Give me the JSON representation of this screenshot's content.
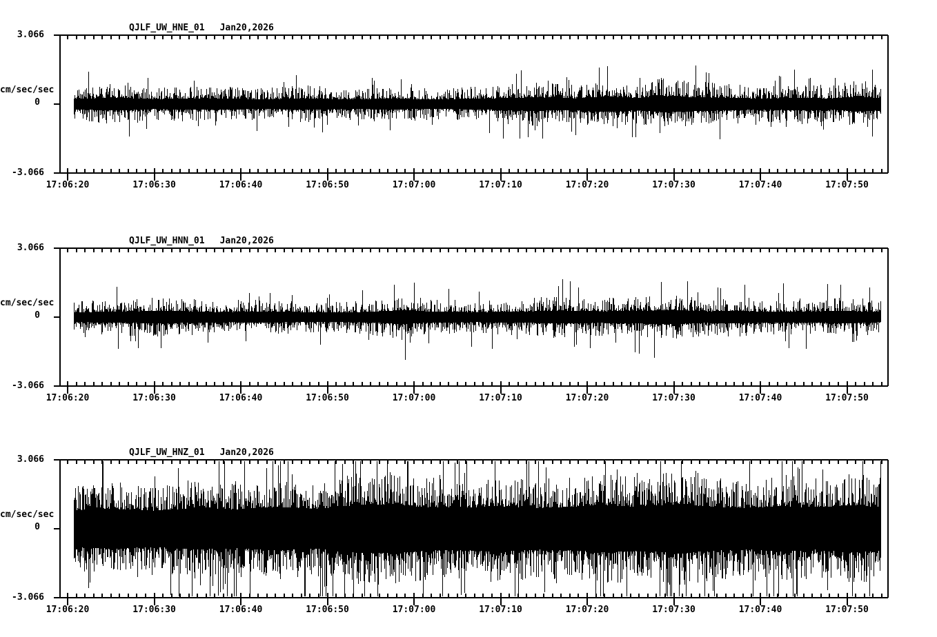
{
  "page": {
    "background": "#ffffff",
    "ink": "#000000"
  },
  "chart_data": [
    {
      "type": "line",
      "panel": "top",
      "title": "QJLF_UW_HNE_01",
      "date": "Jan20,2026",
      "ylabel": "cm/sec/sec",
      "ylim": [
        -3.066,
        3.066
      ],
      "y_tick_labels": [
        "3.066",
        "0",
        "-3.066"
      ],
      "x_tick_labels": [
        "17:06:20",
        "17:06:30",
        "17:06:40",
        "17:06:50",
        "17:07:00",
        "17:07:10",
        "17:07:20",
        "17:07:30",
        "17:07:40",
        "17:07:50"
      ],
      "x_major_interval_sec": 10,
      "x_minor_interval_sec": 1,
      "grid": false,
      "legend": "none",
      "waveform_model": {
        "seed": 11,
        "core_frac": 0.3,
        "spike_pow": 2.6,
        "spike_prob": 0.03,
        "spike_gain": 1.45,
        "envelope": [
          [
            0,
            0.75
          ],
          [
            0.05,
            0.95
          ],
          [
            0.1,
            0.75
          ],
          [
            0.17,
            0.85
          ],
          [
            0.23,
            0.7
          ],
          [
            0.29,
            0.85
          ],
          [
            0.34,
            0.7
          ],
          [
            0.39,
            0.8
          ],
          [
            0.45,
            0.7
          ],
          [
            0.5,
            0.8
          ],
          [
            0.57,
            1.0
          ],
          [
            0.62,
            0.85
          ],
          [
            0.66,
            1.15
          ],
          [
            0.7,
            0.9
          ],
          [
            0.73,
            1.2
          ],
          [
            0.77,
            1.0
          ],
          [
            0.82,
            0.9
          ],
          [
            0.86,
            0.8
          ],
          [
            0.9,
            0.95
          ],
          [
            0.94,
            0.8
          ],
          [
            0.97,
            1.1
          ],
          [
            1,
            0.9
          ]
        ]
      }
    },
    {
      "type": "line",
      "panel": "middle",
      "title": "QJLF_UW_HNN_01",
      "date": "Jan20,2026",
      "ylabel": "cm/sec/sec",
      "ylim": [
        -3.066,
        3.066
      ],
      "y_tick_labels": [
        "3.066",
        "0",
        "-3.066"
      ],
      "x_tick_labels": [
        "17:06:20",
        "17:06:30",
        "17:06:40",
        "17:06:50",
        "17:07:00",
        "17:07:10",
        "17:07:20",
        "17:07:30",
        "17:07:40",
        "17:07:50"
      ],
      "x_major_interval_sec": 10,
      "x_minor_interval_sec": 1,
      "grid": false,
      "legend": "none",
      "waveform_model": {
        "seed": 29,
        "core_frac": 0.3,
        "spike_pow": 2.8,
        "spike_prob": 0.025,
        "spike_gain": 1.5,
        "envelope": [
          [
            0,
            0.7
          ],
          [
            0.06,
            0.85
          ],
          [
            0.12,
            0.9
          ],
          [
            0.18,
            0.75
          ],
          [
            0.24,
            0.8
          ],
          [
            0.3,
            0.7
          ],
          [
            0.36,
            0.75
          ],
          [
            0.41,
            1.05
          ],
          [
            0.44,
            0.8
          ],
          [
            0.5,
            0.75
          ],
          [
            0.55,
            0.8
          ],
          [
            0.6,
            0.95
          ],
          [
            0.65,
            0.85
          ],
          [
            0.7,
            0.9
          ],
          [
            0.74,
            1.05
          ],
          [
            0.78,
            0.85
          ],
          [
            0.82,
            0.9
          ],
          [
            0.87,
            0.8
          ],
          [
            0.92,
            0.85
          ],
          [
            0.96,
            0.9
          ],
          [
            1,
            0.75
          ]
        ]
      }
    },
    {
      "type": "line",
      "panel": "bottom",
      "title": "QJLF_UW_HNZ_01",
      "date": "Jan20,2026",
      "ylabel": "cm/sec/sec",
      "ylim": [
        -3.066,
        3.066
      ],
      "y_tick_labels": [
        "3.066",
        "0",
        "-3.066"
      ],
      "x_tick_labels": [
        "17:06:20",
        "17:06:30",
        "17:06:40",
        "17:06:50",
        "17:07:00",
        "17:07:10",
        "17:07:20",
        "17:07:30",
        "17:07:40",
        "17:07:50"
      ],
      "x_major_interval_sec": 10,
      "x_minor_interval_sec": 1,
      "grid": false,
      "legend": "none",
      "waveform_model": {
        "seed": 47,
        "core_frac": 0.42,
        "spike_pow": 2.0,
        "spike_prob": 0.05,
        "spike_gain": 1.35,
        "envelope": [
          [
            0,
            1.9
          ],
          [
            0.05,
            2.1
          ],
          [
            0.1,
            1.9
          ],
          [
            0.15,
            2.2
          ],
          [
            0.2,
            2.0
          ],
          [
            0.25,
            2.3
          ],
          [
            0.3,
            2.1
          ],
          [
            0.35,
            2.5
          ],
          [
            0.4,
            2.6
          ],
          [
            0.43,
            2.3
          ],
          [
            0.48,
            2.2
          ],
          [
            0.52,
            2.4
          ],
          [
            0.57,
            2.2
          ],
          [
            0.62,
            2.3
          ],
          [
            0.66,
            2.5
          ],
          [
            0.7,
            2.3
          ],
          [
            0.75,
            2.6
          ],
          [
            0.79,
            2.3
          ],
          [
            0.84,
            2.2
          ],
          [
            0.88,
            2.4
          ],
          [
            0.92,
            2.2
          ],
          [
            0.96,
            2.5
          ],
          [
            1,
            2.3
          ]
        ]
      }
    }
  ]
}
